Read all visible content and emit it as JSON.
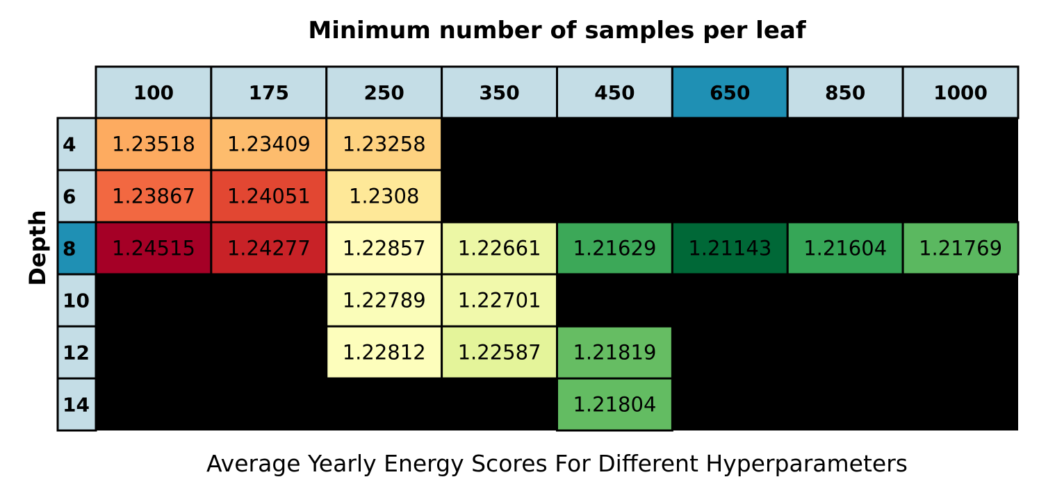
{
  "title": "Minimum number of samples per leaf",
  "ylabel": "Depth",
  "caption": "Average Yearly Energy Scores For Different Hyperparameters",
  "chart_data": {
    "type": "heatmap",
    "title": "Minimum number of samples per leaf",
    "xlabel": "",
    "ylabel": "Depth",
    "x_categories": [
      "100",
      "175",
      "250",
      "350",
      "450",
      "650",
      "850",
      "1000"
    ],
    "y_categories": [
      "4",
      "6",
      "8",
      "10",
      "12",
      "14"
    ],
    "highlight_x": "650",
    "highlight_y": "8",
    "values": [
      [
        1.23518,
        1.23409,
        1.23258,
        null,
        null,
        null,
        null,
        null
      ],
      [
        1.23867,
        1.24051,
        1.2308,
        null,
        null,
        null,
        null,
        null
      ],
      [
        1.24515,
        1.24277,
        1.22857,
        1.22661,
        1.21629,
        1.21143,
        1.21604,
        1.21769
      ],
      [
        null,
        null,
        1.22789,
        1.22701,
        null,
        null,
        null,
        null
      ],
      [
        null,
        null,
        1.22812,
        1.22587,
        1.21819,
        null,
        null,
        null
      ],
      [
        null,
        null,
        null,
        null,
        1.21804,
        null,
        null,
        null
      ]
    ],
    "labels": [
      [
        "1.23518",
        "1.23409",
        "1.23258",
        "",
        "",
        "",
        "",
        ""
      ],
      [
        "1.23867",
        "1.24051",
        "1.2308",
        "",
        "",
        "",
        "",
        ""
      ],
      [
        "1.24515",
        "1.24277",
        "1.22857",
        "1.22661",
        "1.21629",
        "1.21143",
        "1.21604",
        "1.21769"
      ],
      [
        "",
        "",
        "1.22789",
        "1.22701",
        "",
        "",
        "",
        ""
      ],
      [
        "",
        "",
        "1.22812",
        "1.22587",
        "1.21819",
        "",
        "",
        ""
      ],
      [
        "",
        "",
        "",
        "",
        "1.21804",
        "",
        "",
        ""
      ]
    ],
    "colormap": "RdYlGn_r",
    "missing_color": "#000000",
    "header_color": "#c4dde6",
    "highlight_color": "#1f90b4"
  }
}
